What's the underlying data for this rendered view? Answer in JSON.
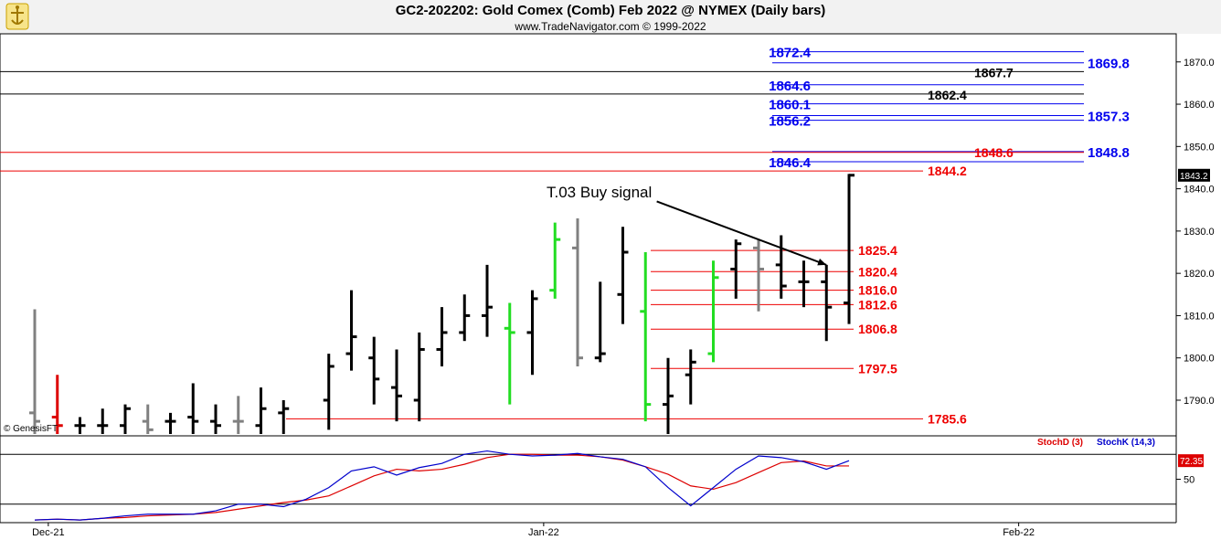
{
  "header": {
    "title": "GC2-202202:  Gold Comex (Comb) Feb 2022 @ NYMEX  (Daily bars)",
    "subtitle": "www.TradeNavigator.com © 1999-2022"
  },
  "watermark": "© GenesisFT",
  "colors": {
    "up_bar": "#000000",
    "neutral_bar": "#808080",
    "green_bar": "#22dd22",
    "red_bar": "#dd0000",
    "stoch_d": "#dd0000",
    "stoch_k": "#0000cc",
    "blue_level": "#0000ee",
    "red_level": "#ee0000"
  },
  "chart_data": [
    {
      "type": "ohlc",
      "ylim": [
        1782,
        1876
      ],
      "y_ticks": [
        "1790.0",
        "1800.0",
        "1810.0",
        "1820.0",
        "1830.0",
        "1840.0",
        "1850.0",
        "1860.0",
        "1870.0"
      ],
      "y_tick_values": [
        1790,
        1800,
        1810,
        1820,
        1830,
        1840,
        1850,
        1860,
        1870
      ],
      "x_labels": [
        "Dec-21",
        "Jan-22",
        "Feb-22"
      ],
      "x_label_slots": [
        0.6,
        22.5,
        43.5
      ],
      "last_price_label": "1843.2",
      "last_price": 1843.2,
      "bars": [
        {
          "slot": 0,
          "h": 1811.5,
          "l": 1782,
          "o": 1787,
          "c": 1785,
          "color": "neutral"
        },
        {
          "slot": 1,
          "h": 1796,
          "l": 1782,
          "o": 1786,
          "c": 1784,
          "color": "red"
        },
        {
          "slot": 2,
          "h": 1786,
          "l": 1782,
          "o": 1784,
          "c": 1784,
          "color": "up"
        },
        {
          "slot": 3,
          "h": 1788,
          "l": 1782,
          "o": 1784,
          "c": 1784,
          "color": "up"
        },
        {
          "slot": 4,
          "h": 1789,
          "l": 1782,
          "o": 1784,
          "c": 1788,
          "color": "up"
        },
        {
          "slot": 5,
          "h": 1789,
          "l": 1782,
          "o": 1785,
          "c": 1783,
          "color": "neutral"
        },
        {
          "slot": 6,
          "h": 1787,
          "l": 1782,
          "o": 1785,
          "c": 1785,
          "color": "up"
        },
        {
          "slot": 7,
          "h": 1794,
          "l": 1782,
          "o": 1786,
          "c": 1785,
          "color": "up"
        },
        {
          "slot": 8,
          "h": 1789,
          "l": 1782,
          "o": 1785,
          "c": 1784,
          "color": "up"
        },
        {
          "slot": 9,
          "h": 1791,
          "l": 1782,
          "o": 1785,
          "c": 1785,
          "color": "neutral"
        },
        {
          "slot": 10,
          "h": 1793,
          "l": 1782,
          "o": 1784,
          "c": 1788,
          "color": "up"
        },
        {
          "slot": 11,
          "h": 1790,
          "l": 1782,
          "o": 1787,
          "c": 1788,
          "color": "up"
        },
        {
          "slot": 13,
          "h": 1801,
          "l": 1783,
          "o": 1790,
          "c": 1798,
          "color": "up"
        },
        {
          "slot": 14,
          "h": 1816,
          "l": 1797,
          "o": 1801,
          "c": 1805,
          "color": "up"
        },
        {
          "slot": 15,
          "h": 1805,
          "l": 1789,
          "o": 1800,
          "c": 1795,
          "color": "up"
        },
        {
          "slot": 16,
          "h": 1802,
          "l": 1785,
          "o": 1793,
          "c": 1791,
          "color": "up"
        },
        {
          "slot": 17,
          "h": 1806,
          "l": 1785,
          "o": 1790,
          "c": 1802,
          "color": "up"
        },
        {
          "slot": 18,
          "h": 1812,
          "l": 1798,
          "o": 1802,
          "c": 1806,
          "color": "up"
        },
        {
          "slot": 19,
          "h": 1815,
          "l": 1804,
          "o": 1806,
          "c": 1810,
          "color": "up"
        },
        {
          "slot": 20,
          "h": 1822,
          "l": 1805,
          "o": 1810,
          "c": 1812,
          "color": "up"
        },
        {
          "slot": 21,
          "h": 1813,
          "l": 1789,
          "o": 1807,
          "c": 1806,
          "color": "green"
        },
        {
          "slot": 22,
          "h": 1816,
          "l": 1796,
          "o": 1806,
          "c": 1814,
          "color": "up"
        },
        {
          "slot": 23,
          "h": 1832,
          "l": 1814,
          "o": 1816,
          "c": 1828,
          "color": "green"
        },
        {
          "slot": 24,
          "h": 1833,
          "l": 1798,
          "o": 1826,
          "c": 1800,
          "color": "neutral"
        },
        {
          "slot": 25,
          "h": 1818,
          "l": 1799,
          "o": 1800,
          "c": 1801,
          "color": "up"
        },
        {
          "slot": 26,
          "h": 1831,
          "l": 1808,
          "o": 1815,
          "c": 1825,
          "color": "up"
        },
        {
          "slot": 27,
          "h": 1825,
          "l": 1785,
          "o": 1811,
          "c": 1789,
          "color": "green"
        },
        {
          "slot": 28,
          "h": 1800,
          "l": 1782,
          "o": 1789,
          "c": 1791,
          "color": "up"
        },
        {
          "slot": 29,
          "h": 1802,
          "l": 1789,
          "o": 1796,
          "c": 1799,
          "color": "up"
        },
        {
          "slot": 30,
          "h": 1823,
          "l": 1799,
          "o": 1801,
          "c": 1819,
          "color": "green"
        },
        {
          "slot": 31,
          "h": 1828,
          "l": 1814,
          "o": 1821,
          "c": 1827,
          "color": "up"
        },
        {
          "slot": 32,
          "h": 1828,
          "l": 1811,
          "o": 1826,
          "c": 1821,
          "color": "neutral"
        },
        {
          "slot": 33,
          "h": 1829,
          "l": 1814,
          "o": 1822,
          "c": 1817,
          "color": "up"
        },
        {
          "slot": 34,
          "h": 1823,
          "l": 1812,
          "o": 1818,
          "c": 1818,
          "color": "up"
        },
        {
          "slot": 35,
          "h": 1822,
          "l": 1804,
          "o": 1818,
          "c": 1812,
          "color": "up"
        },
        {
          "slot": 36,
          "h": 1843.5,
          "l": 1808,
          "o": 1813,
          "c": 1843.2,
          "color": "up"
        }
      ],
      "blue_levels": [
        {
          "label": "1872.4",
          "value": 1872.4,
          "label_side": "left"
        },
        {
          "label": "1869.8",
          "value": 1869.8,
          "label_side": "right"
        },
        {
          "label": "1864.6",
          "value": 1864.6,
          "label_side": "left"
        },
        {
          "label": "1860.1",
          "value": 1860.1,
          "label_side": "left"
        },
        {
          "label": "1857.3",
          "value": 1857.3,
          "label_side": "right"
        },
        {
          "label": "1856.2",
          "value": 1856.2,
          "label_side": "left"
        },
        {
          "label": "1848.8",
          "value": 1848.8,
          "label_side": "right"
        },
        {
          "label": "1846.4",
          "value": 1846.4,
          "label_side": "left"
        }
      ],
      "black_levels": [
        {
          "label": "1867.7",
          "value": 1867.7
        },
        {
          "label": "1862.4",
          "value": 1862.4
        }
      ],
      "red_levels": [
        {
          "label": "1848.6",
          "value": 1848.6,
          "strike": true
        },
        {
          "label": "1844.2",
          "value": 1844.2
        },
        {
          "label": "1785.6",
          "value": 1785.6
        }
      ],
      "short_red_levels": [
        {
          "label": "1825.4",
          "value": 1825.4
        },
        {
          "label": "1820.4",
          "value": 1820.4
        },
        {
          "label": "1816.0",
          "value": 1816.0
        },
        {
          "label": "1812.6",
          "value": 1812.6
        },
        {
          "label": "1806.8",
          "value": 1806.8
        },
        {
          "label": "1797.5",
          "value": 1797.5
        }
      ],
      "annotation": {
        "text": "T.03 Buy signal",
        "arrow_from_slot": 27.5,
        "arrow_from_value": 1837,
        "arrow_to_slot": 35,
        "arrow_to_value": 1822
      }
    },
    {
      "type": "line",
      "ylim": [
        0,
        100
      ],
      "y_ticks": [
        "50"
      ],
      "y_tick_values": [
        50
      ],
      "last_value_label": "72.35",
      "last_value": 72.35,
      "legend": [
        "StochD (3)",
        "StochK (14,3)"
      ],
      "series": [
        {
          "name": "StochD (3)",
          "values": [
            1,
            2,
            1,
            3,
            4,
            6,
            7,
            8,
            10,
            14,
            18,
            22,
            25,
            30,
            42,
            54,
            62,
            60,
            62,
            68,
            76,
            80,
            80,
            79,
            79,
            77,
            73,
            65,
            56,
            42,
            38,
            46,
            58,
            70,
            72,
            66,
            66
          ]
        },
        {
          "name": "StochK (14,3)",
          "values": [
            1,
            2,
            1,
            3,
            6,
            8,
            8,
            8,
            12,
            20,
            20,
            17,
            26,
            40,
            60,
            65,
            55,
            64,
            69,
            80,
            84,
            80,
            78,
            79,
            81,
            77,
            74,
            65,
            40,
            18,
            40,
            62,
            78,
            76,
            71,
            62,
            72.35
          ]
        }
      ]
    }
  ]
}
